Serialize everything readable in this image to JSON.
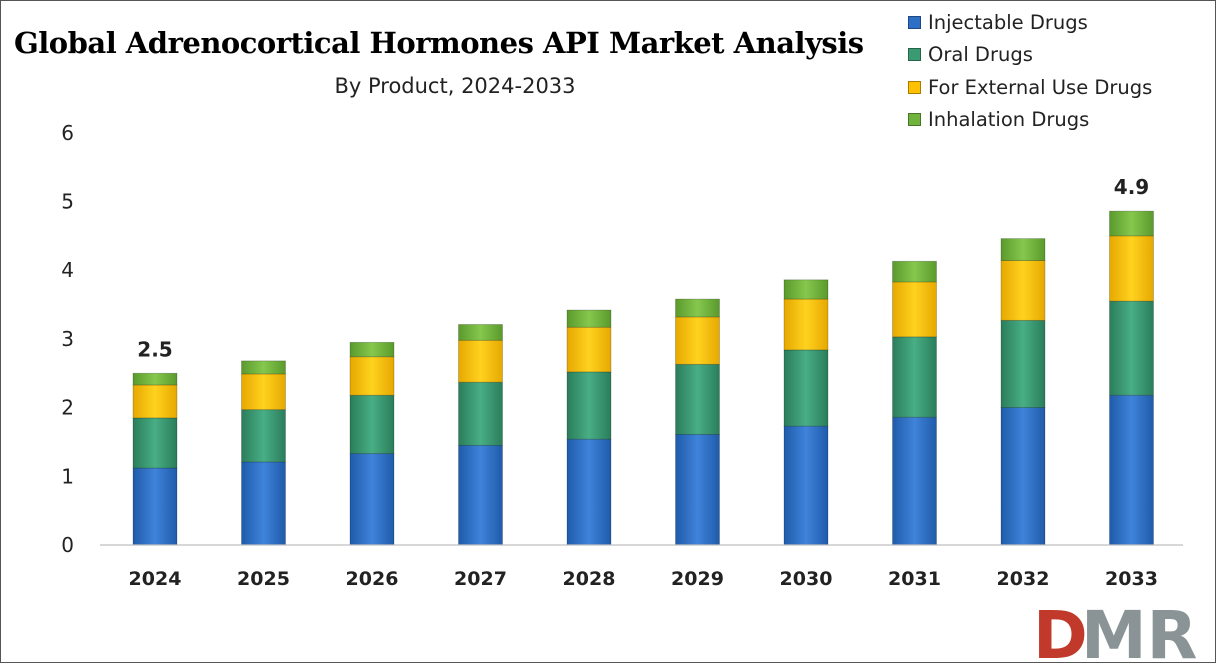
{
  "chart_data": {
    "type": "bar",
    "stacked": true,
    "title": "Global Adrenocortical Hormones API Market Analysis",
    "subtitle": "By Product, 2024-2033",
    "xlabel": "",
    "ylabel": "",
    "categories": [
      "2024",
      "2025",
      "2026",
      "2027",
      "2028",
      "2029",
      "2030",
      "2031",
      "2032",
      "2033"
    ],
    "series": [
      {
        "name": "Injectable Drugs",
        "color": "#2E6FC6",
        "values": [
          1.12,
          1.21,
          1.33,
          1.45,
          1.54,
          1.61,
          1.73,
          1.86,
          2.0,
          2.18
        ]
      },
      {
        "name": "Oral Drugs",
        "color": "#3A9A72",
        "values": [
          0.73,
          0.76,
          0.85,
          0.92,
          0.98,
          1.02,
          1.11,
          1.17,
          1.27,
          1.37
        ]
      },
      {
        "name": "For External Use Drugs",
        "color": "#FFC000",
        "values": [
          0.48,
          0.52,
          0.56,
          0.61,
          0.65,
          0.69,
          0.74,
          0.8,
          0.87,
          0.95
        ]
      },
      {
        "name": "Inhalation Drugs",
        "color": "#70B33C",
        "values": [
          0.17,
          0.19,
          0.21,
          0.23,
          0.25,
          0.26,
          0.28,
          0.3,
          0.32,
          0.36
        ]
      }
    ],
    "data_labels": {
      "2024": "2.5",
      "2033": "4.9"
    },
    "y_ticks": [
      "0",
      "1",
      "2",
      "3",
      "4",
      "5",
      "6"
    ],
    "ylim": [
      0,
      6
    ],
    "grid": false,
    "legend_position": "top-right"
  },
  "logo": {
    "text": "DMR",
    "colors": [
      "#C0392B",
      "#7F8C8D"
    ]
  }
}
